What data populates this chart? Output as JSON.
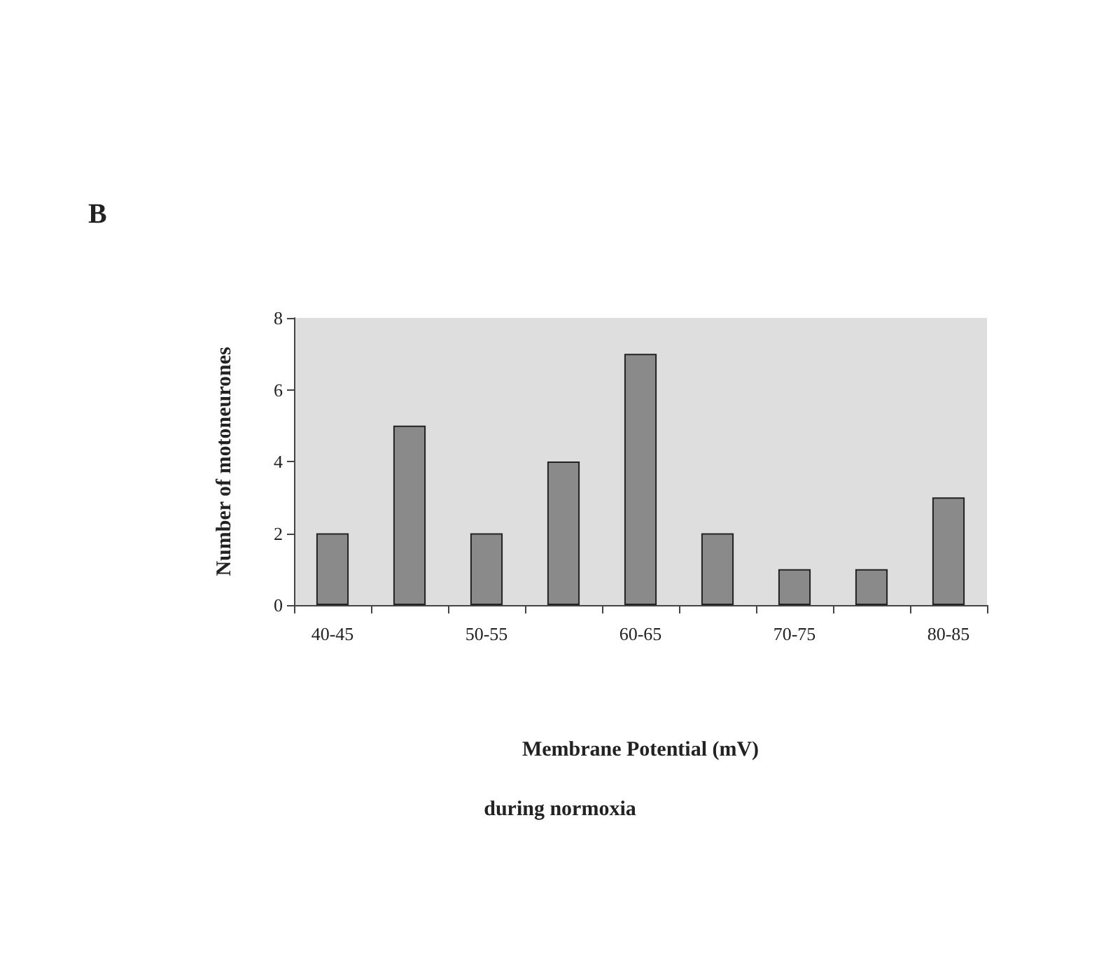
{
  "chart_data": {
    "type": "bar",
    "title": "B",
    "xlabel": "Membrane Potential (mV)",
    "ylabel": "Number of motoneurones",
    "annotations": [
      "during normoxia"
    ],
    "categories": [
      "40-45",
      null,
      "50-55",
      null,
      "60-65",
      null,
      "70-75",
      null,
      "80-85"
    ],
    "values": [
      2,
      5,
      2,
      4,
      7,
      2,
      1,
      1,
      3
    ],
    "color": "#8a8a8a",
    "ylim": [
      0,
      8
    ],
    "yticks": [
      0,
      2,
      4,
      6,
      8
    ],
    "grid": false
  }
}
